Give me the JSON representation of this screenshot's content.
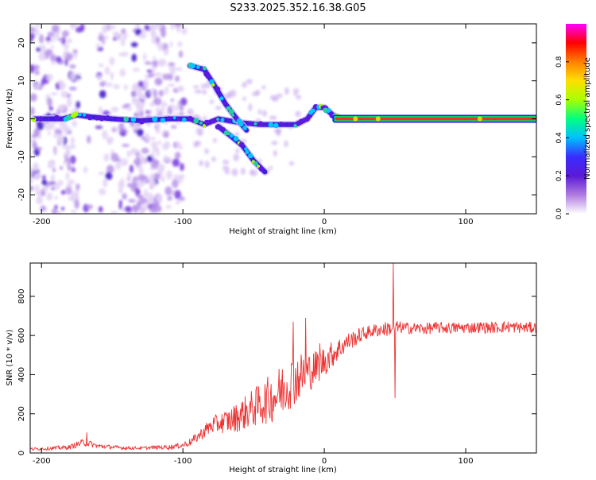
{
  "figure_title": "S233.2025.352.16.38.G05",
  "chart_data": [
    {
      "type": "heatmap",
      "title": "S233.2025.352.16.38.G05",
      "xlabel": "Height of straight line (km)",
      "ylabel": "Frequency (Hz)",
      "xlim": [
        -208,
        150
      ],
      "ylim": [
        -25,
        25
      ],
      "x_ticks": [
        -200,
        -100,
        0,
        100
      ],
      "y_ticks": [
        -20,
        -10,
        0,
        10,
        20
      ],
      "x_tick_labels": [
        "-200",
        "-100",
        "0",
        "100"
      ],
      "y_tick_labels": [
        "-20",
        "-10",
        "0",
        "10",
        "20"
      ],
      "colorbar": {
        "label": "Normalized spectral amplitude",
        "range": [
          0,
          1
        ],
        "ticks": [
          0.0,
          0.2,
          0.4,
          0.6,
          0.8
        ],
        "tick_labels": [
          "0.0",
          "0.2",
          "0.4",
          "0.6",
          "0.8"
        ],
        "colormap": [
          "#ffffff",
          "#b07ae0",
          "#5a1ad6",
          "#3a2dff",
          "#00c0ff",
          "#00ff80",
          "#a8ff00",
          "#ffe000",
          "#ff8000",
          "#ff0000",
          "#ff00ff"
        ]
      },
      "features": [
        {
          "name": "carrier line",
          "x_range": [
            8,
            150
          ],
          "frequency": 0,
          "amplitude": 0.85
        },
        {
          "name": "main trace",
          "points": [
            [
              -205,
              0
            ],
            [
              -185,
              0
            ],
            [
              -175,
              1
            ],
            [
              -165,
              0.5
            ],
            [
              -150,
              0
            ],
            [
              -130,
              -0.5
            ],
            [
              -110,
              0
            ],
            [
              -95,
              0
            ],
            [
              -85,
              -1.5
            ],
            [
              -75,
              0
            ],
            [
              -60,
              -1
            ],
            [
              -45,
              -1.5
            ],
            [
              -30,
              -1.5
            ],
            [
              -20,
              -1.5
            ],
            [
              -12,
              0
            ],
            [
              -6,
              3
            ],
            [
              0,
              3
            ],
            [
              6,
              1
            ],
            [
              12,
              0
            ],
            [
              40,
              0
            ]
          ]
        },
        {
          "name": "upper arc",
          "points": [
            [
              -95,
              14
            ],
            [
              -85,
              13
            ],
            [
              -78,
              9
            ],
            [
              -70,
              4
            ],
            [
              -62,
              0
            ],
            [
              -55,
              -3
            ]
          ]
        },
        {
          "name": "lower branch",
          "points": [
            [
              -75,
              -2
            ],
            [
              -68,
              -4
            ],
            [
              -58,
              -7
            ],
            [
              -50,
              -11
            ],
            [
              -42,
              -14
            ]
          ]
        }
      ]
    },
    {
      "type": "line",
      "xlabel": "Height of straight line (km)",
      "ylabel": "SNR (10 * v/v)",
      "xlim": [
        -208,
        150
      ],
      "ylim": [
        0,
        970
      ],
      "x_ticks": [
        -200,
        -100,
        0,
        100
      ],
      "y_ticks": [
        0,
        200,
        400,
        600,
        800
      ],
      "x_tick_labels": [
        "-200",
        "-100",
        "0",
        "100"
      ],
      "y_tick_labels": [
        "0",
        "200",
        "400",
        "600",
        "800"
      ],
      "series": [
        {
          "name": "SNR",
          "color": "#ee3333",
          "x": [
            -208,
            -200,
            -190,
            -180,
            -170,
            -160,
            -150,
            -140,
            -130,
            -120,
            -110,
            -100,
            -95,
            -90,
            -85,
            -80,
            -75,
            -70,
            -65,
            -60,
            -55,
            -50,
            -45,
            -40,
            -35,
            -30,
            -25,
            -20,
            -15,
            -10,
            -5,
            0,
            5,
            10,
            15,
            20,
            25,
            30,
            35,
            40,
            45,
            50,
            55,
            60,
            70,
            80,
            90,
            100,
            110,
            120,
            130,
            140,
            150
          ],
          "y": [
            20,
            22,
            25,
            30,
            55,
            35,
            30,
            25,
            25,
            28,
            30,
            40,
            55,
            80,
            110,
            140,
            150,
            160,
            170,
            190,
            210,
            230,
            250,
            270,
            290,
            320,
            360,
            380,
            400,
            420,
            440,
            470,
            500,
            530,
            560,
            580,
            600,
            615,
            625,
            630,
            635,
            640,
            640,
            638,
            635,
            640,
            638,
            640,
            642,
            640,
            645,
            640,
            640
          ],
          "noise": [
            8,
            8,
            10,
            12,
            20,
            12,
            10,
            8,
            8,
            10,
            12,
            15,
            20,
            25,
            35,
            45,
            50,
            60,
            70,
            80,
            90,
            100,
            110,
            120,
            130,
            140,
            140,
            130,
            120,
            100,
            90,
            80,
            70,
            60,
            50,
            45,
            40,
            35,
            35,
            35,
            40,
            40,
            30,
            30,
            30,
            30,
            30,
            30,
            30,
            30,
            30,
            30,
            30
          ],
          "spikes": [
            [
              -168,
              105
            ],
            [
              -22,
              670
            ],
            [
              -13,
              690
            ],
            [
              -3,
              560
            ],
            [
              49,
              970
            ],
            [
              50,
              280
            ]
          ]
        }
      ]
    }
  ]
}
